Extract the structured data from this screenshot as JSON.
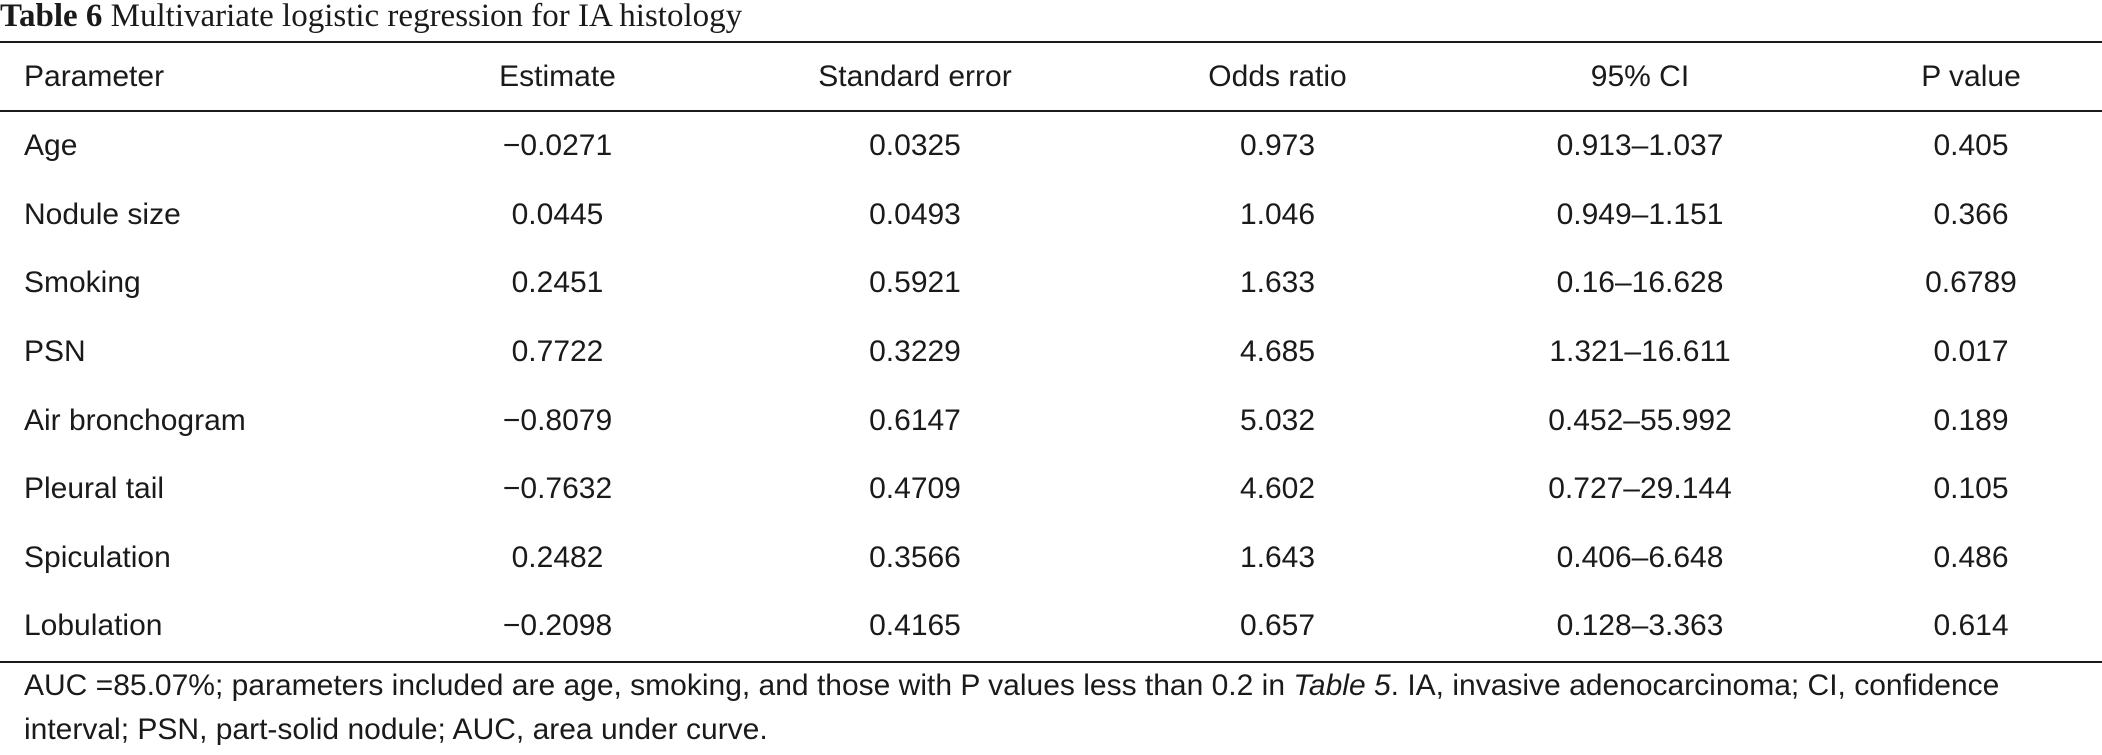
{
  "caption": {
    "label": "Table 6",
    "title": "Multivariate logistic regression for IA histology"
  },
  "table": {
    "headers": [
      "Parameter",
      "Estimate",
      "Standard error",
      "Odds ratio",
      "95% CI",
      "P value"
    ],
    "rows": [
      [
        "Age",
        "−0.0271",
        "0.0325",
        "0.973",
        "0.913–1.037",
        "0.405"
      ],
      [
        "Nodule size",
        "0.0445",
        "0.0493",
        "1.046",
        "0.949–1.151",
        "0.366"
      ],
      [
        "Smoking",
        "0.2451",
        "0.5921",
        "1.633",
        "0.16–16.628",
        "0.6789"
      ],
      [
        "PSN",
        "0.7722",
        "0.3229",
        "4.685",
        "1.321–16.611",
        "0.017"
      ],
      [
        "Air bronchogram",
        "−0.8079",
        "0.6147",
        "5.032",
        "0.452–55.992",
        "0.189"
      ],
      [
        "Pleural tail",
        "−0.7632",
        "0.4709",
        "4.602",
        "0.727–29.144",
        "0.105"
      ],
      [
        "Spiculation",
        "0.2482",
        "0.3566",
        "1.643",
        "0.406–6.648",
        "0.486"
      ],
      [
        "Lobulation",
        "−0.2098",
        "0.4165",
        "0.657",
        "0.128–3.363",
        "0.614"
      ]
    ]
  },
  "footnote": {
    "before": "AUC =85.07%; parameters included are age, smoking, and those with P values less than 0.2 in ",
    "ref": "Table 5",
    "after": ". IA, invasive adenocarcinoma; CI, confidence interval; PSN, part-solid nodule; AUC, area under curve."
  }
}
